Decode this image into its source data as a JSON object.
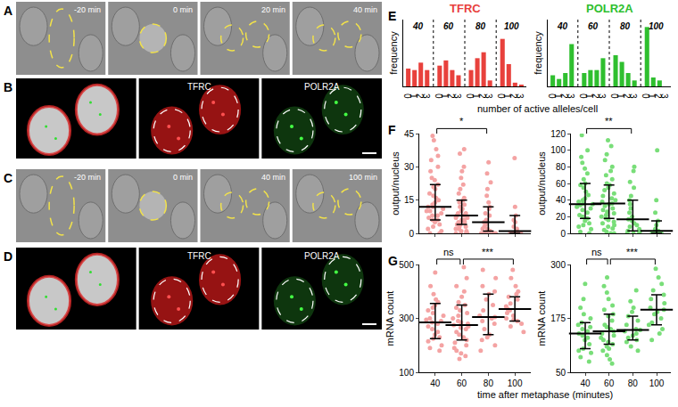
{
  "micrographs": [
    {
      "label": "A",
      "kind": "brightfield",
      "frames": [
        "-20 min",
        "0 min",
        "20 min",
        "40 min"
      ]
    },
    {
      "label": "B",
      "kind": "fluorescence",
      "channels": [
        "TFRC",
        "POLR2A"
      ]
    },
    {
      "label": "C",
      "kind": "brightfield",
      "frames": [
        "-20 min",
        "0 min",
        "40 min",
        "100 min"
      ]
    },
    {
      "label": "D",
      "kind": "fluorescence",
      "channels": [
        "TFRC",
        "POLR2A"
      ]
    }
  ],
  "panels": [
    {
      "label": "E",
      "xlabel": "number of active alleles/cell"
    },
    {
      "label": "F"
    },
    {
      "label": "G",
      "xlabel": "time after metaphase (minutes)"
    }
  ],
  "chart_data": [
    {
      "panel": "E",
      "type": "bar",
      "title": "TFRC",
      "color": "#e8413c",
      "ylabel": "frequency",
      "groups": [
        "40",
        "60",
        "80",
        "100"
      ],
      "categories": [
        "0",
        "1",
        "2",
        "3"
      ],
      "values": [
        [
          0.24,
          0.22,
          0.32,
          0.22
        ],
        [
          0.28,
          0.35,
          0.22,
          0.15
        ],
        [
          0.22,
          0.38,
          0.46,
          0.08
        ],
        [
          0.64,
          0.3,
          0.05,
          0.02
        ]
      ],
      "ylim": [
        0,
        0.9
      ],
      "tick_labels": "x",
      "grid": false
    },
    {
      "panel": "E",
      "type": "bar",
      "title": "POLR2A",
      "color": "#2fbf2f",
      "ylabel": "frequency",
      "groups": [
        "40",
        "60",
        "80",
        "100"
      ],
      "categories": [
        "0",
        "1",
        "2",
        "3"
      ],
      "values": [
        [
          0.15,
          0.1,
          0.18,
          0.57
        ],
        [
          0.18,
          0.22,
          0.22,
          0.38
        ],
        [
          0.42,
          0.33,
          0.18,
          0.08
        ],
        [
          0.8,
          0.12,
          0.08,
          0.0
        ]
      ],
      "ylim": [
        0,
        0.9
      ],
      "tick_labels": "x",
      "grid": false
    },
    {
      "panel": "F",
      "type": "strip",
      "color": "#f4a3a3",
      "ylabel": "output/nucleus",
      "categories": [
        "40",
        "60",
        "80",
        "100"
      ],
      "values": [
        [
          44,
          42,
          38,
          35,
          33,
          30,
          28,
          25,
          24,
          22,
          21,
          20,
          18,
          17,
          16,
          15,
          14,
          13,
          12,
          12,
          11,
          10,
          10,
          9,
          8,
          8,
          7,
          6,
          6,
          5,
          4,
          3,
          2,
          1,
          0,
          0
        ],
        [
          38,
          36,
          30,
          28,
          25,
          22,
          20,
          18,
          16,
          15,
          14,
          13,
          12,
          11,
          10,
          9,
          9,
          8,
          8,
          7,
          7,
          6,
          6,
          5,
          5,
          4,
          4,
          3,
          3,
          2,
          2,
          1,
          1,
          0,
          0,
          0,
          0
        ],
        [
          32,
          27,
          23,
          20,
          17,
          14,
          12,
          11,
          9,
          8,
          6,
          5,
          5,
          4,
          3,
          2,
          2,
          1,
          1,
          0,
          0,
          0,
          0
        ],
        [
          34,
          12,
          8,
          6,
          5,
          3,
          2,
          1,
          1,
          0,
          0,
          0,
          0,
          0,
          0
        ]
      ],
      "median": [
        12,
        8,
        5,
        1
      ],
      "iqr_low": [
        6,
        4,
        1,
        0
      ],
      "iqr_high": [
        22,
        15,
        12,
        8
      ],
      "ylim": [
        0,
        45
      ],
      "yticks": [
        0,
        15,
        30,
        45
      ],
      "tick_labels": "y",
      "grid": false,
      "significance": [
        {
          "from": "40",
          "to": "80",
          "label": "*"
        }
      ]
    },
    {
      "panel": "F",
      "type": "strip",
      "color": "#79de79",
      "ylabel": "output/nucleus",
      "categories": [
        "40",
        "60",
        "80",
        "100"
      ],
      "values": [
        [
          118,
          100,
          92,
          85,
          78,
          72,
          65,
          60,
          58,
          55,
          50,
          46,
          42,
          40,
          38,
          36,
          35,
          34,
          32,
          30,
          28,
          25,
          22,
          20,
          18,
          15,
          12,
          10,
          8,
          5,
          2,
          0
        ],
        [
          112,
          105,
          95,
          88,
          80,
          75,
          70,
          65,
          60,
          58,
          55,
          52,
          48,
          45,
          42,
          40,
          38,
          36,
          35,
          33,
          30,
          28,
          26,
          24,
          22,
          20,
          18,
          16,
          14,
          12,
          10,
          8,
          6,
          4,
          2,
          0,
          0
        ],
        [
          80,
          75,
          62,
          55,
          45,
          40,
          35,
          30,
          25,
          20,
          17,
          15,
          12,
          10,
          8,
          5,
          3,
          2,
          0,
          0,
          0
        ],
        [
          100,
          40,
          25,
          15,
          10,
          5,
          3,
          2,
          0,
          0,
          0,
          0,
          0
        ]
      ],
      "median": [
        35,
        36,
        17,
        3
      ],
      "iqr_low": [
        18,
        18,
        3,
        0
      ],
      "iqr_high": [
        60,
        58,
        40,
        15
      ],
      "ylim": [
        0,
        120
      ],
      "yticks": [
        0,
        20,
        40,
        60,
        80,
        100,
        120
      ],
      "tick_labels": "y",
      "grid": false,
      "significance": [
        {
          "from": "40",
          "to": "80",
          "label": "**"
        }
      ]
    },
    {
      "panel": "G",
      "type": "strip",
      "color": "#f4a3a3",
      "ylabel": "mRNA count",
      "categories": [
        "40",
        "60",
        "80",
        "100"
      ],
      "values": [
        [
          470,
          420,
          390,
          370,
          360,
          350,
          340,
          330,
          320,
          310,
          300,
          295,
          290,
          285,
          280,
          270,
          260,
          250,
          240,
          230,
          225,
          215,
          200,
          190,
          180
        ],
        [
          490,
          450,
          420,
          400,
          380,
          360,
          350,
          340,
          330,
          320,
          310,
          300,
          290,
          285,
          280,
          275,
          270,
          265,
          260,
          250,
          240,
          230,
          220,
          210,
          200,
          190,
          180,
          170,
          160,
          150
        ],
        [
          480,
          450,
          420,
          400,
          390,
          370,
          350,
          330,
          310,
          305,
          300,
          290,
          280,
          260,
          240,
          230,
          220,
          200,
          180
        ],
        [
          480,
          450,
          420,
          400,
          390,
          380,
          370,
          355,
          345,
          335,
          330,
          320,
          310,
          300,
          295,
          290,
          280,
          270,
          250
        ]
      ],
      "median": [
        285,
        275,
        305,
        335
      ],
      "iqr_low": [
        225,
        220,
        240,
        290
      ],
      "iqr_high": [
        355,
        350,
        390,
        380
      ],
      "ylim": [
        100,
        500
      ],
      "yticks": [
        100,
        300,
        500
      ],
      "grid": false,
      "significance": [
        {
          "from": "40",
          "to": "60",
          "label": "ns"
        },
        {
          "from": "60",
          "to": "100",
          "label": "***"
        }
      ]
    },
    {
      "panel": "G",
      "type": "strip",
      "color": "#79de79",
      "ylabel": "mRNA count",
      "categories": [
        "40",
        "60",
        "80",
        "100"
      ],
      "values": [
        [
          255,
          220,
          200,
          185,
          175,
          165,
          160,
          155,
          150,
          145,
          140,
          135,
          130,
          125,
          115,
          105,
          100,
          95,
          85,
          75
        ],
        [
          270,
          250,
          235,
          220,
          205,
          195,
          185,
          180,
          170,
          160,
          155,
          150,
          145,
          140,
          135,
          130,
          125,
          120,
          115,
          110,
          105,
          100,
          90,
          80,
          70
        ],
        [
          240,
          215,
          200,
          190,
          180,
          170,
          160,
          150,
          148,
          145,
          140,
          135,
          130,
          125,
          120,
          110,
          100
        ],
        [
          290,
          270,
          255,
          240,
          230,
          220,
          210,
          200,
          195,
          190,
          185,
          175,
          165,
          160,
          150,
          140,
          125
        ]
      ],
      "median": [
        140,
        145,
        148,
        195
      ],
      "iqr_low": [
        105,
        115,
        125,
        160
      ],
      "iqr_high": [
        165,
        185,
        180,
        230
      ],
      "ylim": [
        50,
        300
      ],
      "yticks": [
        50,
        175,
        300
      ],
      "grid": false,
      "significance": [
        {
          "from": "40",
          "to": "60",
          "label": "ns"
        },
        {
          "from": "60",
          "to": "100",
          "label": "***"
        }
      ]
    }
  ]
}
